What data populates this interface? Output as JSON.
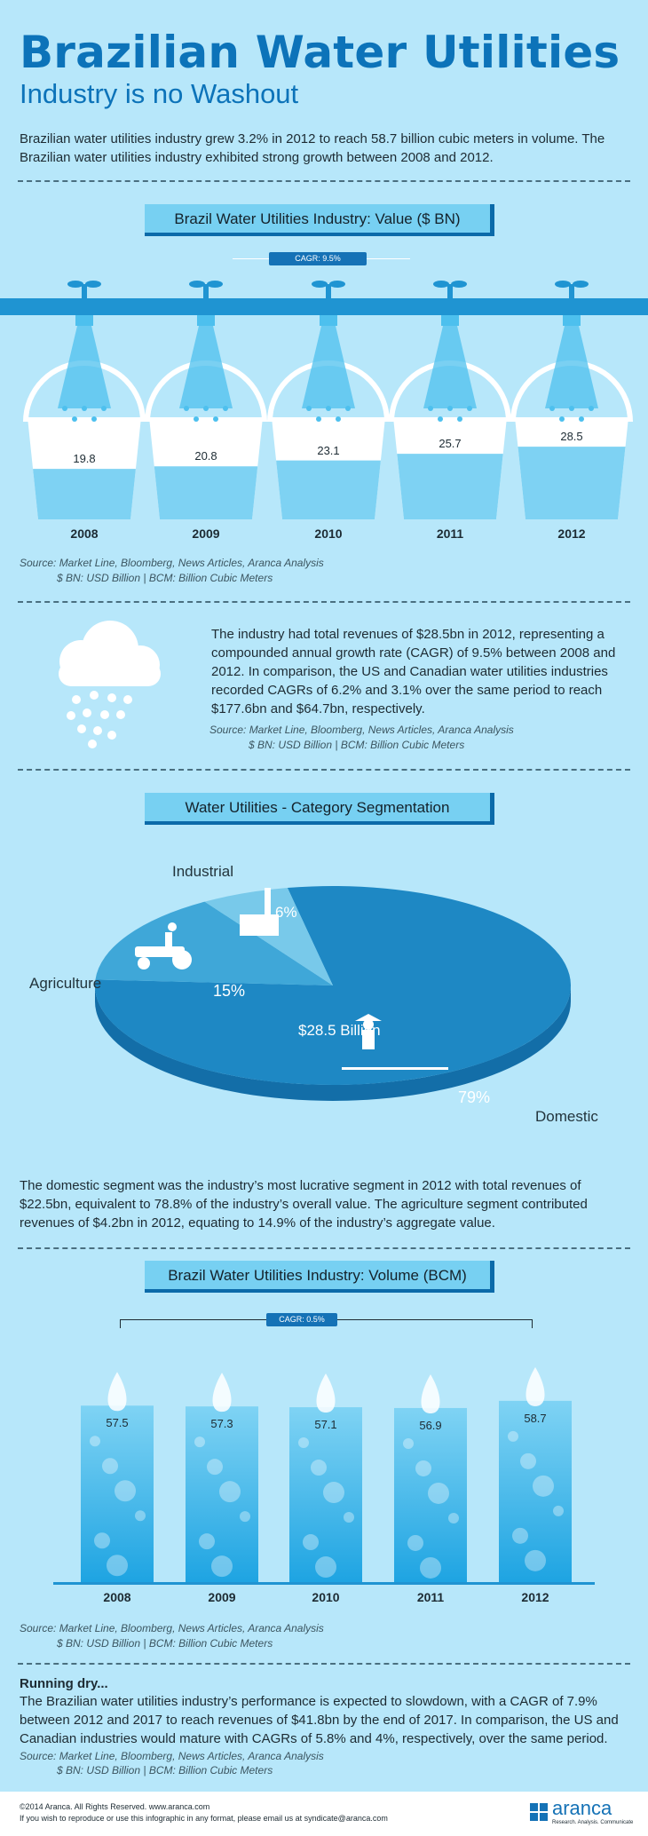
{
  "header": {
    "title": "Brazilian Water Utilities",
    "subtitle": "Industry is no Washout",
    "intro": "Brazilian water utilities industry grew 3.2% in 2012 to reach 58.7 billion cubic meters in volume. The Brazilian water utilities industry exhibited strong growth between 2008 and 2012."
  },
  "value_section": {
    "title": "Brazil Water Utilities Industry: Value ($ BN)",
    "cagr": "CAGR: 9.5%",
    "source_line1": "Source: Market Line, Bloomberg, News Articles, Aranca Analysis",
    "source_line2": "$ BN: USD Billion | BCM: Billion Cubic Meters",
    "chart_data": {
      "type": "bar",
      "categories": [
        "2008",
        "2009",
        "2010",
        "2011",
        "2012"
      ],
      "values": [
        19.8,
        20.8,
        23.1,
        25.7,
        28.5
      ],
      "labels": [
        "19.8",
        "20.8",
        "23.1",
        "25.7",
        "28.5"
      ]
    }
  },
  "revenue_section": {
    "text": "The industry had total revenues of $28.5bn in 2012, representing a compounded annual growth rate (CAGR) of 9.5% between 2008 and 2012. In comparison, the US and Canadian water utilities industries recorded CAGRs of 6.2% and 3.1% over the same period to reach $177.6bn and $64.7bn, respectively.",
    "source_line1": "Source: Market Line, Bloomberg, News Articles, Aranca Analysis",
    "source_line2": "$ BN: USD Billion | BCM: Billion Cubic Meters"
  },
  "segment_section": {
    "title": "Water Utilities - Category Segmentation",
    "total_label": "$28.5 Billion",
    "chart_data": {
      "type": "pie",
      "categories": [
        "Domestic",
        "Agriculture",
        "Industrial"
      ],
      "values": [
        79,
        15,
        6
      ],
      "value_labels": [
        "79%",
        "15%",
        "6%"
      ]
    },
    "text": "The domestic segment was the industry’s most lucrative segment in 2012 with total revenues of $22.5bn, equivalent to 78.8% of the industry’s overall value. The agriculture segment contributed revenues of $4.2bn in 2012, equating to 14.9% of the industry’s aggregate value.",
    "colors": {
      "domestic": "#1e88c4",
      "agriculture": "#3fa7d8",
      "industrial": "#78c9ea",
      "side": "#136ea8"
    }
  },
  "volume_section": {
    "title": "Brazil Water Utilities Industry: Volume (BCM)",
    "cagr": "CAGR: 0.5%",
    "source_line1": "Source: Market Line, Bloomberg, News Articles, Aranca Analysis",
    "source_line2": "$ BN: USD Billion | BCM: Billion Cubic Meters",
    "chart_data": {
      "type": "bar",
      "categories": [
        "2008",
        "2009",
        "2010",
        "2011",
        "2012"
      ],
      "values": [
        57.5,
        57.3,
        57.1,
        56.9,
        58.7
      ],
      "labels": [
        "57.5",
        "57.3",
        "57.1",
        "56.9",
        "58.7"
      ]
    }
  },
  "outlook": {
    "heading": "Running dry...",
    "text": "The Brazilian water utilities industry’s performance is expected to slowdown, with a CAGR of 7.9% between 2012 and 2017 to reach revenues of $41.8bn by the end of 2017. In comparison, the US and Canadian industries would mature with CAGRs of 5.8% and 4%, respectively, over the same period.",
    "source_line1": "Source: Market Line, Bloomberg, News Articles, Aranca Analysis",
    "source_line2": "$ BN: USD Billion | BCM: Billion Cubic Meters"
  },
  "footer": {
    "copyright": "©2014 Aranca. All Rights Reserved. www.aranca.com",
    "reproduce": "If you wish to reproduce or use this infographic in any format, please email us at syndicate@aranca.com",
    "brand": "aranca",
    "tagline": "Research. Analysis. Communicate"
  }
}
